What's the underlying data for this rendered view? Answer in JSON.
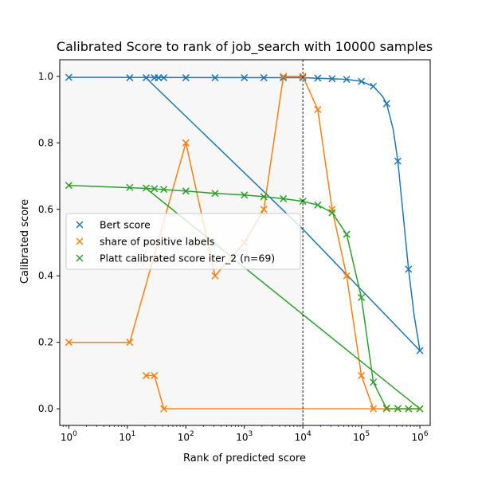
{
  "chart_data": {
    "type": "line",
    "title": "Calibrated Score to rank of job_search with 10000 samples",
    "xlabel": "Rank of predicted score",
    "ylabel": "Calibrated score",
    "xscale": "log",
    "xlim": [
      0.7,
      1500000
    ],
    "ylim": [
      -0.05,
      1.05
    ],
    "x_tick_labels": [
      {
        "value": 1,
        "base": "10",
        "exp": "0"
      },
      {
        "value": 10,
        "base": "10",
        "exp": "1"
      },
      {
        "value": 100,
        "base": "10",
        "exp": "2"
      },
      {
        "value": 1000,
        "base": "10",
        "exp": "3"
      },
      {
        "value": 10000,
        "base": "10",
        "exp": "4"
      },
      {
        "value": 100000,
        "base": "10",
        "exp": "5"
      },
      {
        "value": 1000000,
        "base": "10",
        "exp": "6"
      }
    ],
    "y_ticks": [
      0.0,
      0.2,
      0.4,
      0.6,
      0.8,
      1.0
    ],
    "y_tick_labels": [
      "0.0",
      "0.2",
      "0.4",
      "0.6",
      "0.8",
      "1.0"
    ],
    "shaded_region": {
      "x_from": 0.7,
      "x_to": 10000,
      "color": "#f7f7f7"
    },
    "vertical_line": {
      "x": 10000,
      "style": "dashed",
      "color": "#000000"
    },
    "legend_position": "center-left",
    "series": [
      {
        "name": "Bert score",
        "color": "#1f77b4",
        "line": [
          [
            21,
            0.995
          ],
          [
            10000,
            0.54
          ],
          [
            1000000,
            0.175
          ]
        ],
        "points": [
          [
            1,
            0.997
          ],
          [
            11,
            0.996
          ],
          [
            21,
            0.996
          ],
          [
            29,
            0.996
          ],
          [
            34,
            0.996
          ],
          [
            42,
            0.996
          ],
          [
            100,
            0.996
          ],
          [
            316,
            0.996
          ],
          [
            1000,
            0.996
          ],
          [
            2154,
            0.996
          ],
          [
            4642,
            0.996
          ],
          [
            10000,
            0.996
          ],
          [
            18000,
            0.995
          ],
          [
            31600,
            0.993
          ],
          [
            56000,
            0.991
          ],
          [
            100000,
            0.985
          ],
          [
            160000,
            0.97
          ],
          [
            270000,
            0.918
          ],
          [
            420000,
            0.745
          ],
          [
            640000,
            0.42
          ],
          [
            1000000,
            0.175
          ]
        ],
        "curve": [
          [
            1,
            0.997
          ],
          [
            10000,
            0.996
          ],
          [
            56000,
            0.991
          ],
          [
            100000,
            0.985
          ],
          [
            160000,
            0.97
          ],
          [
            230000,
            0.94
          ],
          [
            270000,
            0.918
          ],
          [
            350000,
            0.84
          ],
          [
            420000,
            0.745
          ],
          [
            520000,
            0.58
          ],
          [
            640000,
            0.42
          ],
          [
            800000,
            0.28
          ],
          [
            1000000,
            0.175
          ]
        ]
      },
      {
        "name": "share of positive labels",
        "color": "#ff7f0e",
        "line": [
          [
            1,
            0.2
          ],
          [
            11,
            0.2
          ],
          [
            100,
            0.8
          ],
          [
            316,
            0.4
          ],
          [
            1000,
            0.5
          ],
          [
            2154,
            0.6
          ],
          [
            4642,
            1.0
          ],
          [
            10000,
            1.0
          ],
          [
            18000,
            0.9
          ],
          [
            31600,
            0.6
          ],
          [
            56000,
            0.4
          ],
          [
            100000,
            0.1
          ],
          [
            160000,
            0.0
          ],
          [
            1000000,
            0.0
          ],
          [
            42,
            0.0
          ],
          [
            29,
            0.1
          ],
          [
            21,
            0.1
          ]
        ],
        "points": [
          [
            1,
            0.2
          ],
          [
            11,
            0.2
          ],
          [
            21,
            0.1
          ],
          [
            29,
            0.1
          ],
          [
            42,
            0.0
          ],
          [
            100,
            0.8
          ],
          [
            316,
            0.4
          ],
          [
            1000,
            0.5
          ],
          [
            2154,
            0.6
          ],
          [
            4642,
            1.0
          ],
          [
            10000,
            1.0
          ],
          [
            18000,
            0.9
          ],
          [
            31600,
            0.6
          ],
          [
            56000,
            0.4
          ],
          [
            100000,
            0.1
          ],
          [
            160000,
            0.0
          ],
          [
            270000,
            0.0
          ],
          [
            420000,
            0.0
          ],
          [
            640000,
            0.0
          ],
          [
            1000000,
            0.0
          ]
        ]
      },
      {
        "name": "Platt calibrated score iter_2 (n=69)",
        "color": "#2ca02c",
        "line": [
          [
            1,
            0.672
          ],
          [
            11,
            0.665
          ],
          [
            21,
            0.663
          ],
          [
            100,
            0.655
          ],
          [
            316,
            0.648
          ],
          [
            1000,
            0.643
          ],
          [
            2154,
            0.638
          ],
          [
            4642,
            0.632
          ],
          [
            10000,
            0.624
          ],
          [
            18000,
            0.613
          ],
          [
            31600,
            0.59
          ],
          [
            56000,
            0.525
          ],
          [
            100000,
            0.335
          ],
          [
            160000,
            0.08
          ],
          [
            270000,
            0.0
          ],
          [
            420000,
            0.0
          ],
          [
            640000,
            0.0
          ],
          [
            1000000,
            0.0
          ],
          [
            21,
            0.663
          ]
        ],
        "points": [
          [
            1,
            0.672
          ],
          [
            11,
            0.666
          ],
          [
            21,
            0.664
          ],
          [
            29,
            0.662
          ],
          [
            42,
            0.66
          ],
          [
            100,
            0.655
          ],
          [
            316,
            0.648
          ],
          [
            1000,
            0.643
          ],
          [
            2154,
            0.638
          ],
          [
            4642,
            0.632
          ],
          [
            10000,
            0.624
          ],
          [
            18000,
            0.613
          ],
          [
            31600,
            0.59
          ],
          [
            56000,
            0.525
          ],
          [
            100000,
            0.335
          ],
          [
            160000,
            0.08
          ],
          [
            270000,
            0.002
          ],
          [
            420000,
            0.001
          ],
          [
            640000,
            0.0
          ],
          [
            1000000,
            0.0
          ]
        ]
      }
    ]
  }
}
